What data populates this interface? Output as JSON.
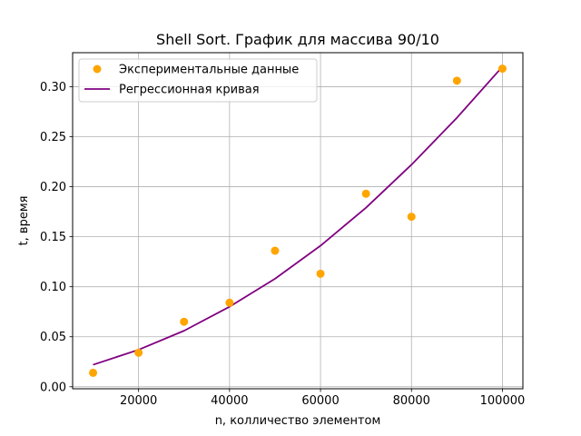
{
  "chart_data": {
    "type": "scatter",
    "title": "Shell Sort. График для массива 90/10",
    "xlabel": "n, колличество элементом",
    "ylabel": "t, время",
    "xlim": [
      5500,
      104500
    ],
    "ylim": [
      -0.002,
      0.334
    ],
    "xticks": [
      20000,
      40000,
      60000,
      80000,
      100000
    ],
    "xtick_labels": [
      "20000",
      "40000",
      "60000",
      "80000",
      "100000"
    ],
    "yticks": [
      0.0,
      0.05,
      0.1,
      0.15,
      0.2,
      0.25,
      0.3
    ],
    "ytick_labels": [
      "0.00",
      "0.05",
      "0.10",
      "0.15",
      "0.20",
      "0.25",
      "0.30"
    ],
    "grid": true,
    "legend_position": "top-left",
    "series": [
      {
        "name": "Экспериментальные данные",
        "kind": "scatter",
        "color": "#ffa500",
        "x": [
          10000,
          20000,
          30000,
          40000,
          50000,
          60000,
          70000,
          80000,
          90000,
          100000
        ],
        "y": [
          0.014,
          0.034,
          0.065,
          0.084,
          0.136,
          0.113,
          0.193,
          0.17,
          0.306,
          0.318
        ]
      },
      {
        "name": "Регрессионная кривая",
        "kind": "line",
        "color": "#800080",
        "x": [
          10000,
          20000,
          30000,
          40000,
          50000,
          60000,
          70000,
          80000,
          90000,
          100000
        ],
        "y": [
          0.022,
          0.037,
          0.056,
          0.08,
          0.108,
          0.141,
          0.179,
          0.222,
          0.269,
          0.32
        ]
      }
    ]
  }
}
